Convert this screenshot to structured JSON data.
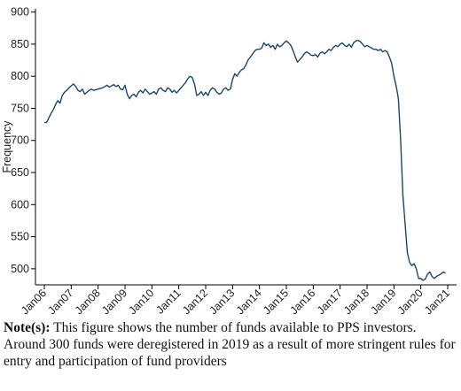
{
  "chart_data": {
    "type": "line",
    "ylabel": "Frequency",
    "categories": [
      "Jan06",
      null,
      null,
      null,
      null,
      null,
      null,
      null,
      null,
      null,
      null,
      null,
      "Jan07",
      null,
      null,
      null,
      null,
      null,
      null,
      null,
      null,
      null,
      null,
      null,
      "Jan08",
      null,
      null,
      null,
      null,
      null,
      null,
      null,
      null,
      null,
      null,
      null,
      "Jan09",
      null,
      null,
      null,
      null,
      null,
      null,
      null,
      null,
      null,
      null,
      null,
      "Jan10",
      null,
      null,
      null,
      null,
      null,
      null,
      null,
      null,
      null,
      null,
      null,
      "Jan11",
      null,
      null,
      null,
      null,
      null,
      null,
      null,
      null,
      null,
      null,
      null,
      "Jan12",
      null,
      null,
      null,
      null,
      null,
      null,
      null,
      null,
      null,
      null,
      null,
      "Jan13",
      null,
      null,
      null,
      null,
      null,
      null,
      null,
      null,
      null,
      null,
      null,
      "Jan14",
      null,
      null,
      null,
      null,
      null,
      null,
      null,
      null,
      null,
      null,
      null,
      "Jan15",
      null,
      null,
      null,
      null,
      null,
      null,
      null,
      null,
      null,
      null,
      null,
      "Jan16",
      null,
      null,
      null,
      null,
      null,
      null,
      null,
      null,
      null,
      null,
      null,
      "Jan17",
      null,
      null,
      null,
      null,
      null,
      null,
      null,
      null,
      null,
      null,
      null,
      "Jan18",
      null,
      null,
      null,
      null,
      null,
      null,
      null,
      null,
      null,
      null,
      null,
      "Jan19",
      null,
      null,
      null,
      null,
      null,
      null,
      null,
      null,
      null,
      null,
      null,
      "Jan20",
      null,
      null,
      null,
      null,
      null,
      null,
      null,
      null,
      null,
      null,
      null,
      "Jan21"
    ],
    "values": [
      728,
      728,
      735,
      742,
      748,
      756,
      762,
      758,
      770,
      775,
      778,
      782,
      785,
      788,
      784,
      778,
      776,
      780,
      772,
      775,
      778,
      780,
      778,
      779,
      780,
      781,
      782,
      784,
      786,
      783,
      785,
      787,
      784,
      786,
      780,
      779,
      786,
      772,
      765,
      770,
      772,
      768,
      775,
      778,
      774,
      780,
      776,
      772,
      774,
      776,
      772,
      780,
      782,
      778,
      776,
      782,
      780,
      775,
      778,
      774,
      778,
      782,
      786,
      790,
      796,
      800,
      798,
      788,
      770,
      772,
      776,
      770,
      775,
      770,
      778,
      782,
      780,
      775,
      772,
      774,
      780,
      782,
      778,
      780,
      795,
      804,
      800,
      806,
      810,
      812,
      818,
      826,
      830,
      835,
      840,
      842,
      842,
      844,
      852,
      848,
      850,
      845,
      848,
      842,
      850,
      846,
      848,
      852,
      855,
      852,
      848,
      840,
      830,
      822,
      826,
      830,
      835,
      838,
      836,
      833,
      832,
      834,
      830,
      836,
      838,
      835,
      838,
      842,
      840,
      845,
      848,
      846,
      850,
      852,
      848,
      846,
      850,
      845,
      852,
      855,
      856,
      854,
      850,
      846,
      848,
      846,
      844,
      842,
      842,
      840,
      842,
      838,
      840,
      838,
      830,
      820,
      800,
      785,
      765,
      700,
      615,
      570,
      525,
      510,
      505,
      508,
      500,
      485,
      485,
      482,
      484,
      492,
      495,
      488,
      485,
      488,
      490,
      492,
      495,
      493,
      null
    ],
    "color": "#1a476f",
    "ylim": [
      475,
      905
    ],
    "yticks": [
      500,
      550,
      600,
      650,
      700,
      750,
      800,
      850,
      900
    ]
  },
  "note": {
    "label": "Note(s):",
    "text": "This figure shows the number of funds available to PPS investors. Around 300 funds were deregistered in 2019 as a result of more stringent rules for entry and participation of fund providers"
  }
}
